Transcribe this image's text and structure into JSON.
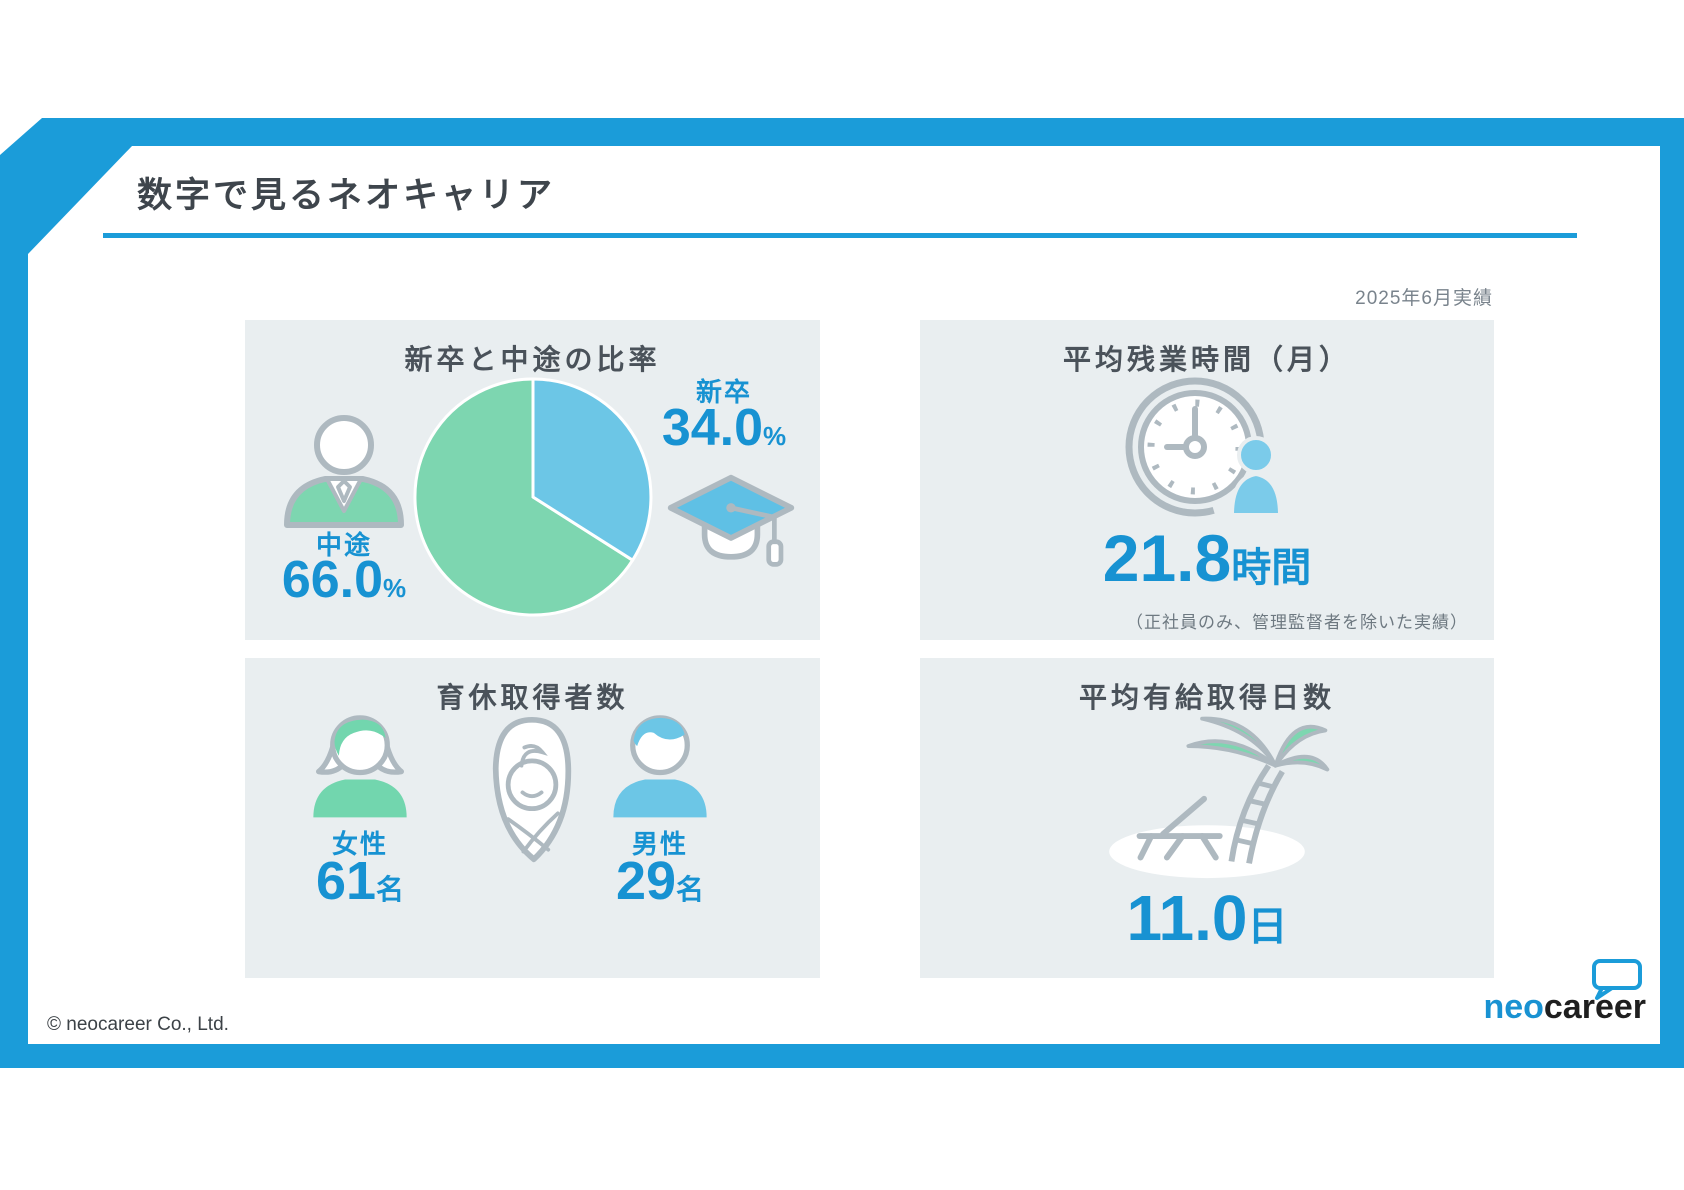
{
  "page": {
    "title": "数字で見るネオキャリア",
    "date_note": "2025年6月実績",
    "copyright": "© neocareer Co., Ltd.",
    "logo_neo": "neo",
    "logo_career": "career"
  },
  "panels": {
    "ratio": {
      "title": "新卒と中途の比率",
      "shinsotsu": {
        "label": "新卒",
        "value": "34.0",
        "unit": "%"
      },
      "chuto": {
        "label": "中途",
        "value": "66.0",
        "unit": "%"
      }
    },
    "overtime": {
      "title": "平均残業時間（月）",
      "value": "21.8",
      "unit": "時間",
      "note": "（正社員のみ、管理監督者を除いた実績）"
    },
    "parental": {
      "title": "育休取得者数",
      "female": {
        "label": "女性",
        "value": "61",
        "unit": "名"
      },
      "male": {
        "label": "男性",
        "value": "29",
        "unit": "名"
      }
    },
    "paid_leave": {
      "title": "平均有給取得日数",
      "value": "11.0",
      "unit": "日"
    }
  },
  "colors": {
    "accent_blue": "#1B9CD9",
    "number_blue": "#1792D2",
    "pie_blue": "#6CC6E6",
    "pie_green": "#7DD6B0",
    "panel_bg": "#E9EEF0",
    "icon_gray": "#AEB9C0"
  },
  "chart_data": {
    "type": "pie",
    "title": "新卒と中途の比率",
    "labels": [
      "新卒",
      "中途"
    ],
    "values": [
      34.0,
      66.0
    ],
    "unit": "%",
    "colors": [
      "#6CC6E6",
      "#7DD6B0"
    ],
    "start_angle_deg": 0,
    "direction": "clockwise",
    "legend_position": "none",
    "context": "2025年6月実績"
  }
}
